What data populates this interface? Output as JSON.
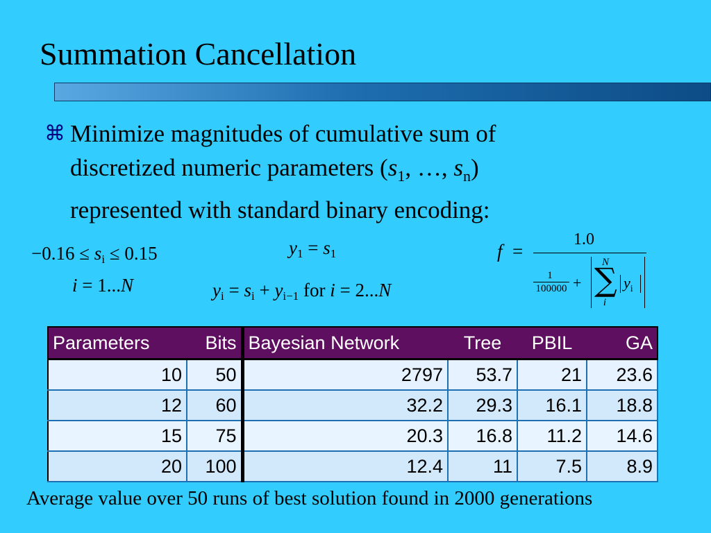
{
  "slide": {
    "title": "Summation Cancellation",
    "bullet_icon": "command-key-icon",
    "bullet_lines": [
      "Minimize magnitudes of cumulative sum of",
      "discretized numeric parameters (",
      "represented with standard binary encoding:"
    ],
    "param_s": "s",
    "param_sub_1": "1",
    "param_sep": ", …, ",
    "param_sub_n": "n",
    "param_close": ")"
  },
  "equations": {
    "constraint": {
      "lower": "−0.16 ≤ ",
      "var": "s",
      "sub": "i",
      "upper": " ≤ 0.15"
    },
    "index_range": {
      "var": "i",
      "rest": " = 1...",
      "N": "N"
    },
    "y1": {
      "lhs": "y",
      "lhs_sub": "1",
      "eq": " = ",
      "rhs": "s",
      "rhs_sub": "1"
    },
    "yi": {
      "lhs": "y",
      "lhs_sub": "i",
      "eq": " = ",
      "s": "s",
      "s_sub": "i",
      "plus": " + ",
      "y": "y",
      "y_sub": "i−1",
      "for": " for ",
      "i": "i",
      "range": " = 2...",
      "N": "N"
    },
    "f": {
      "lhs": "f",
      "eq": "=",
      "numerator": "1.0",
      "small_num": "1",
      "small_den": "100000",
      "plus": "+",
      "sigma": "∑",
      "upper_N": "N",
      "lower_i": "i",
      "y": "y",
      "y_sub": "i"
    }
  },
  "table": {
    "headers": [
      "Parameters",
      "Bits",
      "Bayesian Network",
      "Tree",
      "PBIL",
      "GA"
    ],
    "rows": [
      [
        "10",
        "50",
        "2797",
        "53.7",
        "21",
        "23.6"
      ],
      [
        "12",
        "60",
        "32.2",
        "29.3",
        "16.1",
        "18.8"
      ],
      [
        "15",
        "75",
        "20.3",
        "16.8",
        "11.2",
        "14.6"
      ],
      [
        "20",
        "100",
        "12.4",
        "11",
        "7.5",
        "8.9"
      ]
    ]
  },
  "caption": "Average value over 50 runs of best solution found in 2000 generations",
  "colors": {
    "background": "#33ccff",
    "header_bg": "#5f0f5f",
    "bullet": "#000080"
  }
}
